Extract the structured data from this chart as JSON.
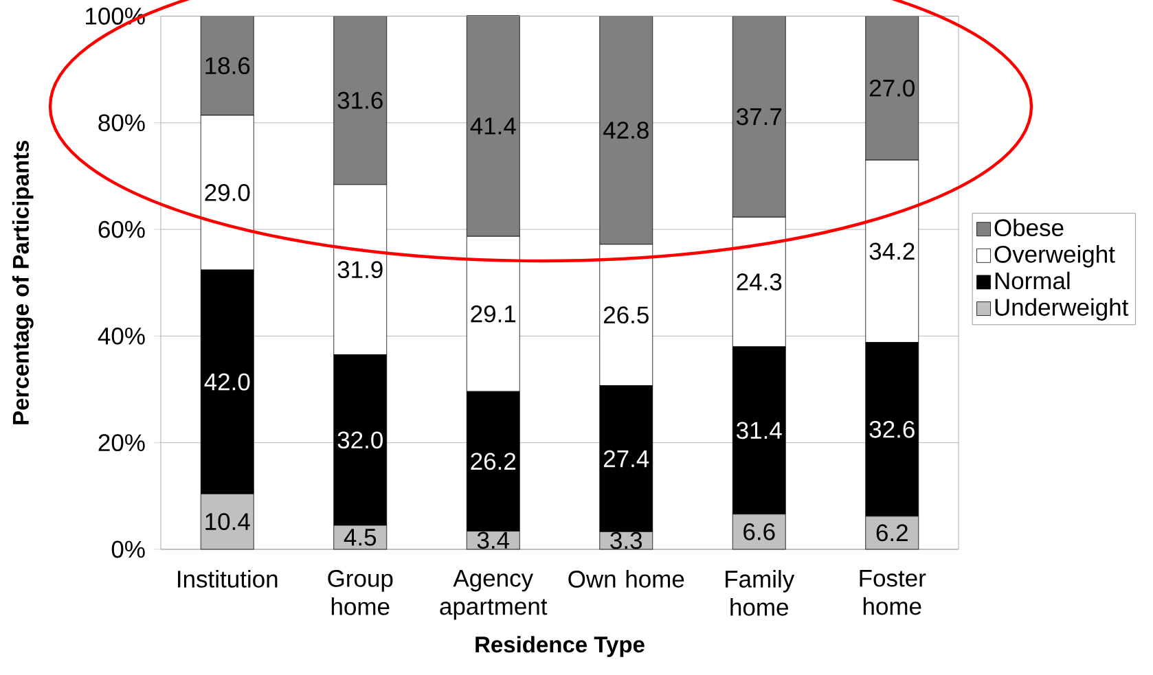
{
  "chart_data": {
    "type": "bar",
    "stacked": true,
    "xlabel": "Residence Type",
    "ylabel": "Percentage of Participants",
    "categories": [
      "Institution",
      "Group home",
      "Agency apartment",
      "Own home",
      "Family home",
      "Foster home"
    ],
    "series": [
      {
        "name": "Underweight",
        "color": "#c0c0c0",
        "values": [
          10.4,
          4.5,
          3.4,
          3.3,
          6.6,
          6.2
        ],
        "value_labels": [
          "10.4",
          "4.5",
          "3.4",
          "3.3",
          "6.6",
          "6.2"
        ]
      },
      {
        "name": "Normal",
        "color": "#000000",
        "values": [
          42.0,
          32.0,
          26.2,
          27.4,
          31.4,
          32.6
        ],
        "value_labels": [
          "42.0",
          "32.0",
          "26.2",
          "27.4",
          "31.4",
          "32.6"
        ]
      },
      {
        "name": "Overweight",
        "color": "#ffffff",
        "values": [
          29.0,
          31.9,
          29.1,
          26.5,
          24.3,
          34.2
        ],
        "value_labels": [
          "29.0",
          "31.9",
          "29.1",
          "26.5",
          "24.3",
          "34.2"
        ]
      },
      {
        "name": "Obese",
        "color": "#808080",
        "values": [
          18.6,
          31.6,
          41.4,
          42.8,
          37.7,
          27.0
        ],
        "value_labels": [
          "18.6",
          "31.6",
          "41.4",
          "42.8",
          "37.7",
          "27.0"
        ]
      }
    ],
    "ylim": [
      0,
      100
    ],
    "yticks": [
      {
        "value": 0,
        "label": "0%"
      },
      {
        "value": 20,
        "label": "20%"
      },
      {
        "value": 40,
        "label": "40%"
      },
      {
        "value": 60,
        "label": "60%"
      },
      {
        "value": 80,
        "label": "80%"
      },
      {
        "value": 100,
        "label": "100%"
      }
    ],
    "grid": "y",
    "legend": "right"
  }
}
